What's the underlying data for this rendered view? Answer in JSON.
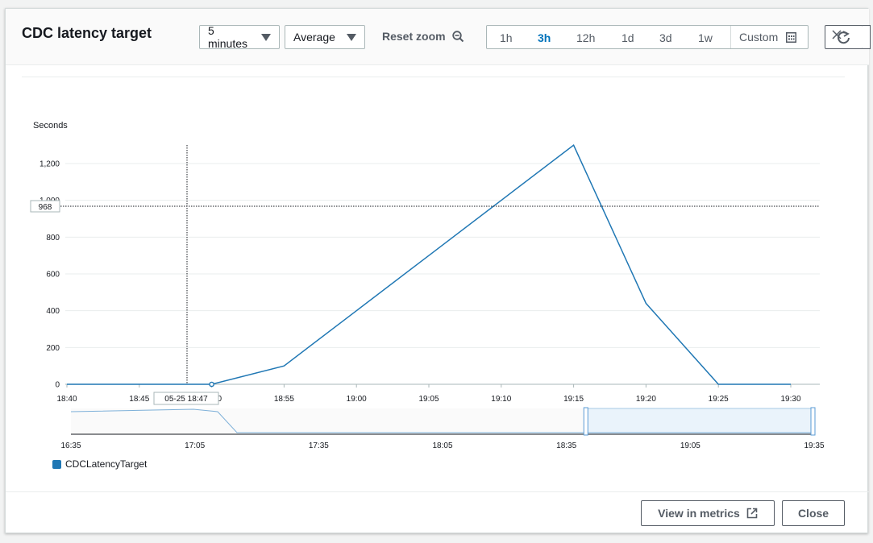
{
  "header": {
    "title": "CDC latency target",
    "period": "5 minutes",
    "statistic": "Average",
    "reset_zoom": "Reset zoom",
    "ranges": [
      "1h",
      "3h",
      "12h",
      "1d",
      "3d",
      "1w"
    ],
    "active_range": "3h",
    "custom": "Custom"
  },
  "footer": {
    "view_in_metrics": "View in metrics",
    "close": "Close"
  },
  "chart_data": {
    "type": "line",
    "ylabel": "Seconds",
    "ylim": [
      0,
      1300
    ],
    "y_ticks": [
      0,
      200,
      400,
      600,
      800,
      1000,
      1200
    ],
    "y_tick_labels": [
      "0",
      "200",
      "400",
      "600",
      "800",
      "1,000",
      "1,200"
    ],
    "x_tick_labels": [
      "18:40",
      "18:45",
      "18:50",
      "18:55",
      "19:00",
      "19:05",
      "19:10",
      "19:15",
      "19:20",
      "19:25",
      "19:30"
    ],
    "x": [
      "18:40",
      "18:45",
      "18:50",
      "18:55",
      "19:00",
      "19:05",
      "19:10",
      "19:15",
      "19:20",
      "19:25",
      "19:30"
    ],
    "series": [
      {
        "name": "CDCLatencyTarget",
        "color": "#1f77b4",
        "values": [
          0,
          0,
          0,
          100,
          400,
          700,
          1000,
          1300,
          440,
          0,
          0
        ]
      }
    ],
    "hover": {
      "time_label": "05-25 18:47",
      "value_label": "968",
      "value": 968
    },
    "overview": {
      "x_tick_labels": [
        "16:35",
        "17:05",
        "17:35",
        "18:05",
        "18:35",
        "19:05",
        "19:35"
      ],
      "selection": [
        "18:40",
        "19:35"
      ]
    },
    "grid": true,
    "legend": "bottom-left"
  }
}
